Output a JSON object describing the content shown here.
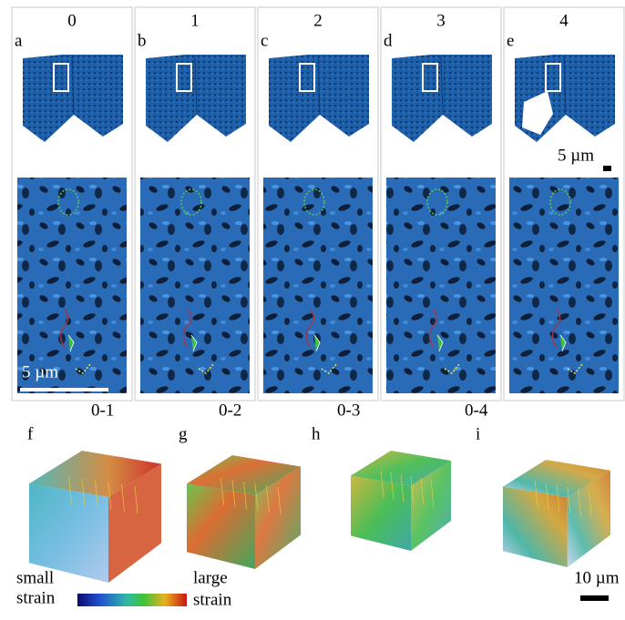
{
  "columns": [
    {
      "label": "0",
      "panel": "a"
    },
    {
      "label": "1",
      "panel": "b"
    },
    {
      "label": "2",
      "panel": "c"
    },
    {
      "label": "3",
      "panel": "d"
    },
    {
      "label": "4",
      "panel": "e"
    }
  ],
  "scale_bar_top": "5 µm",
  "scale_bar_inset": "5 µm",
  "comparisons": [
    {
      "label": "0-1",
      "panel": "f"
    },
    {
      "label": "0-2",
      "panel": "g"
    },
    {
      "label": "0-3",
      "panel": "h"
    },
    {
      "label": "0-4",
      "panel": "i"
    }
  ],
  "colorbar": {
    "low_label": [
      "small",
      "strain"
    ],
    "high_label": [
      "large",
      "strain"
    ]
  },
  "scale_bar_bottom": "10 µm"
}
